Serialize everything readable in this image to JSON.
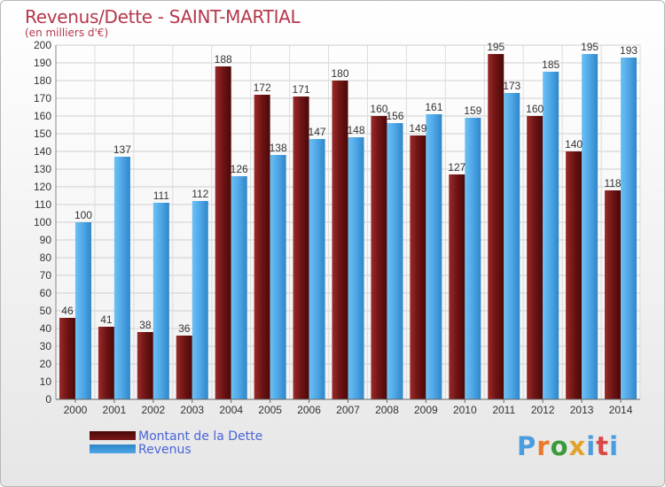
{
  "header": {
    "title": "Revenus/Dette - SAINT-MARTIAL",
    "subtitle": "(en milliers d'€)"
  },
  "legend": {
    "items": [
      {
        "label": "Montant de la Dette",
        "color": "#7a1818"
      },
      {
        "label": "Revenus",
        "color": "#4ea6e6"
      }
    ]
  },
  "logo": {
    "text": "Proxiti",
    "colors": [
      "#4a9de0",
      "#e87a2a",
      "#3a9a3a",
      "#e0a22a",
      "#4a9de0",
      "#d84848",
      "#4a9de0"
    ]
  },
  "chart_data": {
    "type": "bar",
    "categories": [
      "2000",
      "2001",
      "2002",
      "2003",
      "2004",
      "2005",
      "2006",
      "2007",
      "2008",
      "2009",
      "2010",
      "2011",
      "2012",
      "2013",
      "2014"
    ],
    "series": [
      {
        "name": "Montant de la Dette",
        "values": [
          46,
          41,
          38,
          36,
          188,
          172,
          171,
          180,
          160,
          149,
          127,
          195,
          160,
          140,
          118
        ],
        "color": "#7a1818"
      },
      {
        "name": "Revenus",
        "values": [
          100,
          137,
          111,
          112,
          126,
          138,
          147,
          148,
          156,
          161,
          159,
          173,
          185,
          195,
          193
        ],
        "color": "#4ea6e6"
      }
    ],
    "ylim": [
      0,
      200
    ],
    "yticks": [
      0,
      10,
      20,
      30,
      40,
      50,
      60,
      70,
      80,
      90,
      100,
      110,
      120,
      130,
      140,
      150,
      160,
      170,
      180,
      190,
      200
    ],
    "grid": true
  }
}
